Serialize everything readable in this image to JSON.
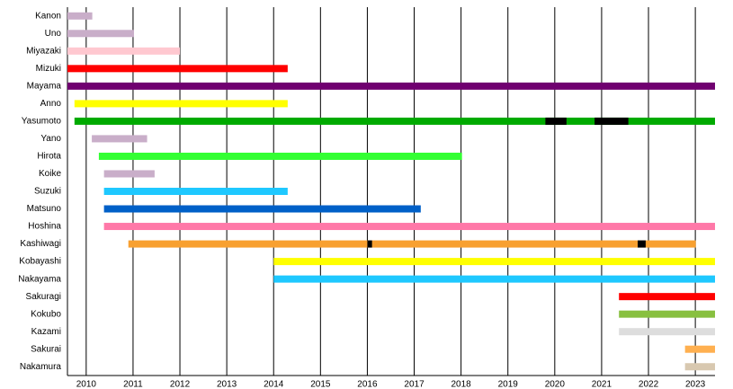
{
  "chart_data": {
    "type": "timeline",
    "xlim": [
      2009.6,
      2023.42
    ],
    "xticks": [
      2010,
      2011,
      2012,
      2013,
      2014,
      2015,
      2016,
      2017,
      2018,
      2019,
      2020,
      2021,
      2022,
      2023
    ],
    "grid": true,
    "break_color": "#000000",
    "rows": [
      {
        "name": "Kanon",
        "start": 2009.6,
        "end": 2010.13,
        "color": "#c9aec9"
      },
      {
        "name": "Uno",
        "start": 2009.6,
        "end": 2011.02,
        "color": "#c9aec9"
      },
      {
        "name": "Miyazaki",
        "start": 2009.6,
        "end": 2012.0,
        "color": "#ffc8d0"
      },
      {
        "name": "Mizuki",
        "start": 2009.6,
        "end": 2014.3,
        "color": "#ff0000"
      },
      {
        "name": "Mayama",
        "start": 2009.6,
        "end": 2023.42,
        "color": "#700070"
      },
      {
        "name": "Anno",
        "start": 2009.75,
        "end": 2014.3,
        "color": "#ffff00"
      },
      {
        "name": "Yasumoto",
        "start": 2009.75,
        "end": 2023.42,
        "color": "#00aa00",
        "breaks": [
          [
            2019.8,
            2020.25
          ],
          [
            2020.85,
            2021.57
          ]
        ]
      },
      {
        "name": "Yano",
        "start": 2010.12,
        "end": 2011.3,
        "color": "#c9aec9"
      },
      {
        "name": "Hirota",
        "start": 2010.27,
        "end": 2018.02,
        "color": "#33ff33"
      },
      {
        "name": "Koike",
        "start": 2010.38,
        "end": 2011.46,
        "color": "#c9aec9"
      },
      {
        "name": "Suzuki",
        "start": 2010.38,
        "end": 2014.3,
        "color": "#1ec8ff"
      },
      {
        "name": "Matsuno",
        "start": 2010.38,
        "end": 2017.14,
        "color": "#0060c8"
      },
      {
        "name": "Hoshina",
        "start": 2010.38,
        "end": 2023.42,
        "color": "#ff78a8"
      },
      {
        "name": "Kashiwagi",
        "start": 2010.9,
        "end": 2023.01,
        "color": "#f8a030",
        "breaks": [
          [
            2016.0,
            2016.1
          ],
          [
            2021.77,
            2021.94
          ]
        ]
      },
      {
        "name": "Kobayashi",
        "start": 2014.0,
        "end": 2023.42,
        "color": "#ffff00"
      },
      {
        "name": "Nakayama",
        "start": 2014.0,
        "end": 2023.42,
        "color": "#1ec8ff"
      },
      {
        "name": "Sakuragi",
        "start": 2021.37,
        "end": 2023.42,
        "color": "#ff0000"
      },
      {
        "name": "Kokubo",
        "start": 2021.37,
        "end": 2023.42,
        "color": "#88c040"
      },
      {
        "name": "Kazami",
        "start": 2021.37,
        "end": 2023.42,
        "color": "#dddddd"
      },
      {
        "name": "Sakurai",
        "start": 2022.78,
        "end": 2023.42,
        "color": "#ffb050"
      },
      {
        "name": "Nakamura",
        "start": 2022.78,
        "end": 2023.42,
        "color": "#d8c8b0"
      }
    ]
  }
}
